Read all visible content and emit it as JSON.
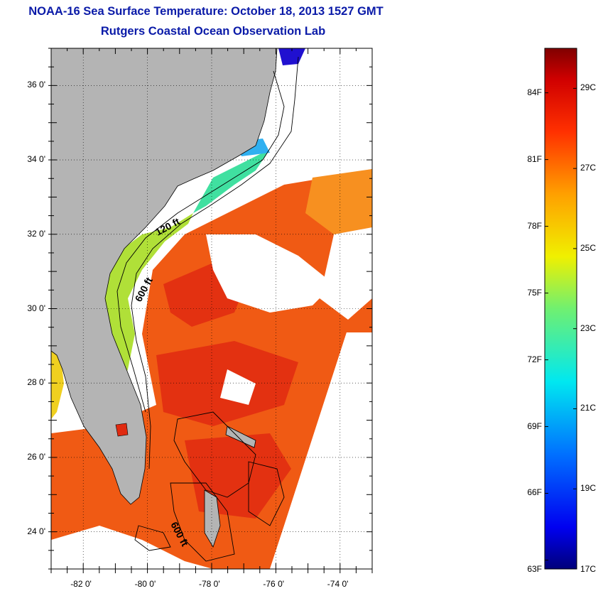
{
  "title": {
    "line1": "NOAA-16 Sea Surface Temperature:  October 18, 2013 1527 GMT",
    "line2": "Rutgers Coastal Ocean Observation Lab"
  },
  "map": {
    "lat_range": [
      23,
      37
    ],
    "lon_range": [
      -83,
      -73
    ],
    "lat_ticks": [
      {
        "value": 24,
        "label": "24 0'"
      },
      {
        "value": 26,
        "label": "26 0'"
      },
      {
        "value": 28,
        "label": "28 0'"
      },
      {
        "value": 30,
        "label": "30 0'"
      },
      {
        "value": 32,
        "label": "32 0'"
      },
      {
        "value": 34,
        "label": "34 0'"
      },
      {
        "value": 36,
        "label": "36 0'"
      }
    ],
    "lon_ticks": [
      {
        "value": -82,
        "label": "-82 0'"
      },
      {
        "value": -80,
        "label": "-80 0'"
      },
      {
        "value": -78,
        "label": "-78 0'"
      },
      {
        "value": -76,
        "label": "-76 0'"
      },
      {
        "value": -74,
        "label": "-74 0'"
      }
    ],
    "contour_labels": [
      "120 ft",
      "600 ft",
      "600 ft"
    ],
    "colors": {
      "land": "#b4b4b4",
      "cloud": "#ffffff",
      "warm": "#f05010",
      "shelf_cool": "#a0e040"
    }
  },
  "colorbar": {
    "min_c": 17,
    "max_c": 30,
    "fahrenheit_labels": [
      "84F",
      "81F",
      "78F",
      "75F",
      "72F",
      "69F",
      "66F",
      "63F"
    ],
    "celsius_labels": [
      "29C",
      "27C",
      "25C",
      "23C",
      "21C",
      "19C",
      "17C"
    ]
  }
}
